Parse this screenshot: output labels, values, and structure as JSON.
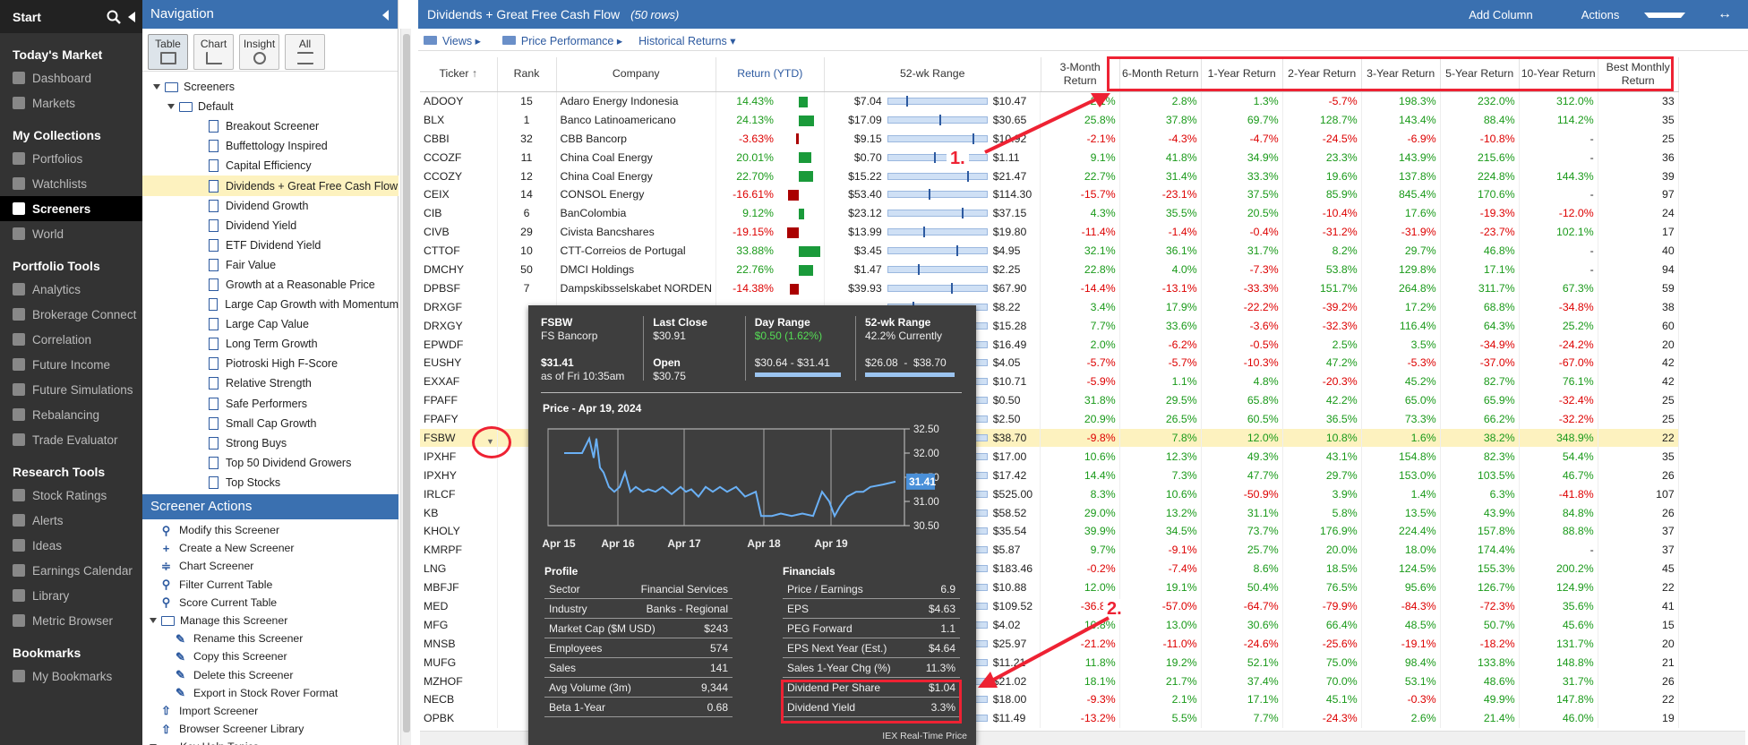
{
  "leftnav": {
    "start": "Start",
    "sections": [
      {
        "title": "Today's Market",
        "items": [
          "Dashboard",
          "Markets"
        ]
      },
      {
        "title": "My Collections",
        "items": [
          "Portfolios",
          "Watchlists",
          "Screeners",
          "World"
        ]
      },
      {
        "title": "Portfolio Tools",
        "items": [
          "Analytics",
          "Brokerage Connect",
          "Correlation",
          "Future Income",
          "Future Simulations",
          "Rebalancing",
          "Trade Evaluator"
        ]
      },
      {
        "title": "Research Tools",
        "items": [
          "Stock Ratings",
          "Alerts",
          "Ideas",
          "Earnings Calendar",
          "Library",
          "Metric Browser"
        ]
      },
      {
        "title": "Bookmarks",
        "items": [
          "My Bookmarks"
        ]
      }
    ],
    "active": "Screeners"
  },
  "nav": {
    "title": "Navigation",
    "views": [
      "Table",
      "Chart",
      "Insight",
      "All"
    ],
    "tree_root": "Screeners",
    "tree_default": "Default",
    "screeners": [
      "Breakout Screener",
      "Buffettology Inspired",
      "Capital Efficiency",
      "Dividends + Great Free Cash Flow",
      "Dividend Growth",
      "Dividend Yield",
      "ETF Dividend Yield",
      "Fair Value",
      "Growth at a Reasonable Price",
      "Large Cap Growth with Momentum",
      "Large Cap Value",
      "Long Term Growth",
      "Piotroski High F-Score",
      "Relative Strength",
      "Safe Performers",
      "Small Cap Growth",
      "Strong Buys",
      "Top 50 Dividend Growers",
      "Top Stocks"
    ],
    "selected": "Dividends + Great Free Cash Flow",
    "actions_title": "Screener Actions",
    "actions": [
      "Modify this Screener",
      "Create a New Screener",
      "Chart Screener",
      "Filter Current Table",
      "Score Current Table"
    ],
    "manage": "Manage this Screener",
    "manage_items": [
      "Rename this Screener",
      "Copy this Screener",
      "Delete this Screener",
      "Export in Stock Rover Format"
    ],
    "more": [
      "Import Screener",
      "Browser Screener Library",
      "Key Help Topics"
    ]
  },
  "main": {
    "title": "Dividends + Great Free Cash Flow",
    "rows": "(50 rows)",
    "add_column": "Add Column",
    "actions": "Actions",
    "toolbar": [
      "Views",
      "Price Performance",
      "Historical Returns"
    ],
    "headers": {
      "ticker": "Ticker",
      "rank": "Rank",
      "company": "Company",
      "ret": "Return (YTD)",
      "wk": "52-wk Range",
      "m3": "3-Month Return",
      "m6": "6-Month Return",
      "y1": "1-Year Return",
      "y2": "2-Year Return",
      "y3": "3-Year Return",
      "y5": "5-Year Return",
      "y10": "10-Year Return",
      "best": "Best Monthly Return"
    },
    "rows_data": [
      [
        "ADOOY",
        "15",
        "Adaro Energy Indonesia",
        "14.43%",
        "$7.04",
        "$10.47",
        "2.1%",
        "2.8%",
        "1.3%",
        "-5.7%",
        "198.3%",
        "232.0%",
        "312.0%",
        "33"
      ],
      [
        "BLX",
        "1",
        "Banco Latinoamericano",
        "24.13%",
        "$17.09",
        "$30.65",
        "25.8%",
        "37.8%",
        "69.7%",
        "128.7%",
        "143.4%",
        "88.4%",
        "114.2%",
        "35"
      ],
      [
        "CBBI",
        "32",
        "CBB Bancorp",
        "-3.63%",
        "$9.15",
        "$10.92",
        "-2.1%",
        "-4.3%",
        "-4.7%",
        "-24.5%",
        "-6.9%",
        "-10.8%",
        "-",
        "25"
      ],
      [
        "CCOZF",
        "11",
        "China Coal Energy",
        "20.01%",
        "$0.70",
        "$1.11",
        "9.1%",
        "41.8%",
        "34.9%",
        "23.3%",
        "143.9%",
        "215.6%",
        "-",
        "36"
      ],
      [
        "CCOZY",
        "12",
        "China Coal Energy",
        "22.70%",
        "$15.22",
        "$21.47",
        "22.7%",
        "31.4%",
        "33.3%",
        "19.6%",
        "137.8%",
        "224.8%",
        "144.3%",
        "39"
      ],
      [
        "CEIX",
        "14",
        "CONSOL Energy",
        "-16.61%",
        "$53.40",
        "$114.30",
        "-15.7%",
        "-23.1%",
        "37.5%",
        "85.9%",
        "845.4%",
        "170.6%",
        "-",
        "97"
      ],
      [
        "CIB",
        "6",
        "BanColombia",
        "9.12%",
        "$23.12",
        "$37.15",
        "4.3%",
        "35.5%",
        "20.5%",
        "-10.4%",
        "17.6%",
        "-19.3%",
        "-12.0%",
        "24"
      ],
      [
        "CIVB",
        "29",
        "Civista Bancshares",
        "-19.15%",
        "$13.99",
        "$19.80",
        "-11.4%",
        "-1.4%",
        "-0.4%",
        "-31.2%",
        "-31.9%",
        "-23.7%",
        "102.1%",
        "17"
      ],
      [
        "CTTOF",
        "10",
        "CTT-Correios de Portugal",
        "33.88%",
        "$3.45",
        "$4.95",
        "32.1%",
        "36.1%",
        "31.7%",
        "8.2%",
        "29.7%",
        "46.8%",
        "-",
        "40"
      ],
      [
        "DMCHY",
        "50",
        "DMCI Holdings",
        "22.76%",
        "$1.47",
        "$2.25",
        "22.8%",
        "4.0%",
        "-7.3%",
        "53.8%",
        "129.8%",
        "17.1%",
        "-",
        "94"
      ],
      [
        "DPBSF",
        "7",
        "Dampskibsselskabet NORDEN",
        "-14.38%",
        "$39.93",
        "$67.90",
        "-14.4%",
        "-13.1%",
        "-33.3%",
        "151.7%",
        "264.8%",
        "311.7%",
        "67.3%",
        "59"
      ],
      [
        "DRXGF",
        "",
        "",
        "",
        "",
        "$8.22",
        "3.4%",
        "17.9%",
        "-22.2%",
        "-39.2%",
        "17.2%",
        "68.8%",
        "-34.8%",
        "38"
      ],
      [
        "DRXGY",
        "",
        "",
        "",
        "",
        "$15.28",
        "7.7%",
        "33.6%",
        "-3.6%",
        "-32.3%",
        "116.4%",
        "64.3%",
        "25.2%",
        "60"
      ],
      [
        "EPWDF",
        "",
        "",
        "",
        "",
        "$16.49",
        "2.0%",
        "-6.2%",
        "-0.5%",
        "2.5%",
        "3.5%",
        "-34.9%",
        "-24.2%",
        "20"
      ],
      [
        "EUSHY",
        "",
        "",
        "",
        "",
        "$4.05",
        "-5.7%",
        "-5.7%",
        "-10.3%",
        "47.2%",
        "-5.3%",
        "-37.0%",
        "-67.0%",
        "42"
      ],
      [
        "EXXAF",
        "",
        "",
        "",
        "",
        "$10.71",
        "-5.9%",
        "1.1%",
        "4.8%",
        "-20.3%",
        "45.2%",
        "82.7%",
        "76.1%",
        "42"
      ],
      [
        "FPAFF",
        "",
        "",
        "",
        "",
        "$0.50",
        "31.8%",
        "29.5%",
        "65.8%",
        "42.2%",
        "65.0%",
        "65.9%",
        "-32.4%",
        "25"
      ],
      [
        "FPAFY",
        "",
        "",
        "",
        "",
        "$2.50",
        "20.9%",
        "26.5%",
        "60.5%",
        "36.5%",
        "73.3%",
        "66.2%",
        "-32.2%",
        "25"
      ],
      [
        "FSBW",
        "",
        "",
        "",
        "",
        "$38.70",
        "-9.8%",
        "7.8%",
        "12.0%",
        "10.8%",
        "1.6%",
        "38.2%",
        "348.9%",
        "22"
      ],
      [
        "IPXHF",
        "",
        "",
        "",
        "",
        "$17.00",
        "10.6%",
        "12.3%",
        "49.3%",
        "43.1%",
        "154.8%",
        "82.3%",
        "54.4%",
        "35"
      ],
      [
        "IPXHY",
        "",
        "",
        "",
        "",
        "$17.42",
        "14.4%",
        "7.3%",
        "47.7%",
        "29.7%",
        "153.0%",
        "103.5%",
        "46.7%",
        "26"
      ],
      [
        "IRLCF",
        "",
        "",
        "",
        "",
        "$525.00",
        "8.3%",
        "10.6%",
        "-50.9%",
        "3.9%",
        "1.4%",
        "6.3%",
        "-41.8%",
        "107"
      ],
      [
        "KB",
        "",
        "",
        "",
        "",
        "$58.52",
        "29.0%",
        "13.2%",
        "31.1%",
        "5.8%",
        "13.5%",
        "43.9%",
        "84.8%",
        "26"
      ],
      [
        "KHOLY",
        "",
        "",
        "",
        "",
        "$35.54",
        "39.9%",
        "34.5%",
        "73.7%",
        "176.9%",
        "224.4%",
        "157.8%",
        "88.8%",
        "37"
      ],
      [
        "KMRPF",
        "",
        "",
        "",
        "",
        "$5.87",
        "9.7%",
        "-9.1%",
        "25.7%",
        "20.0%",
        "18.0%",
        "174.4%",
        "-",
        "37"
      ],
      [
        "LNG",
        "",
        "",
        "",
        "",
        "$183.46",
        "-0.2%",
        "-7.4%",
        "8.6%",
        "18.5%",
        "124.5%",
        "155.3%",
        "200.2%",
        "45"
      ],
      [
        "MBFJF",
        "",
        "",
        "",
        "",
        "$10.88",
        "12.0%",
        "19.1%",
        "50.4%",
        "76.5%",
        "95.6%",
        "126.7%",
        "124.9%",
        "22"
      ],
      [
        "MED",
        "",
        "",
        "",
        "",
        "$109.52",
        "-36.8%",
        "-57.0%",
        "-64.7%",
        "-79.9%",
        "-84.3%",
        "-72.3%",
        "35.6%",
        "41"
      ],
      [
        "MFG",
        "",
        "",
        "",
        "",
        "$4.02",
        "10.8%",
        "13.0%",
        "30.6%",
        "66.4%",
        "48.5%",
        "50.7%",
        "45.6%",
        "15"
      ],
      [
        "MNSB",
        "",
        "",
        "",
        "",
        "$25.97",
        "-21.2%",
        "-11.0%",
        "-24.6%",
        "-25.6%",
        "-19.1%",
        "-18.2%",
        "131.7%",
        "20"
      ],
      [
        "MUFG",
        "",
        "",
        "",
        "",
        "$11.21",
        "11.8%",
        "19.2%",
        "52.1%",
        "75.0%",
        "98.4%",
        "133.8%",
        "148.8%",
        "21"
      ],
      [
        "MZHOF",
        "",
        "",
        "",
        "",
        "$21.02",
        "18.1%",
        "21.7%",
        "37.4%",
        "70.0%",
        "53.1%",
        "48.6%",
        "31.7%",
        "26"
      ],
      [
        "NECB",
        "",
        "",
        "",
        "",
        "$18.00",
        "-9.3%",
        "2.1%",
        "17.1%",
        "45.1%",
        "-0.3%",
        "49.9%",
        "147.8%",
        "22"
      ],
      [
        "OPBK",
        "",
        "",
        "",
        "",
        "$11.49",
        "-13.2%",
        "5.5%",
        "7.7%",
        "-24.3%",
        "2.6%",
        "21.4%",
        "46.0%",
        "19"
      ]
    ],
    "highlight_row": "FSBW"
  },
  "popup": {
    "ticker": "FSBW",
    "name": "FS Bancorp",
    "price": "$31.41",
    "asof": "as of Fri 10:35am",
    "last_close_label": "Last Close",
    "last_close": "$30.91",
    "open_label": "Open",
    "open": "$30.75",
    "day_range_label": "Day Range",
    "day_change": "$0.50 (1.62%)",
    "day_low": "$30.64",
    "day_high": "$31.41",
    "wk_label": "52-wk Range",
    "wk_current": "42.2% Currently",
    "wk_low": "$26.08",
    "wk_high": "$38.70",
    "dash": "-",
    "chart_title": "Price - Apr 19, 2024",
    "chart_last": "31.41",
    "y_ticks": [
      "32.50",
      "32.00",
      "31.50",
      "31.00",
      "30.50"
    ],
    "x_ticks": [
      "Apr 15",
      "Apr 16",
      "Apr 17",
      "Apr 18",
      "Apr 19"
    ],
    "profile_title": "Profile",
    "profile": [
      [
        "Sector",
        "Financial Services"
      ],
      [
        "Industry",
        "Banks - Regional"
      ],
      [
        "Market Cap ($M USD)",
        "$243"
      ],
      [
        "Employees",
        "574"
      ],
      [
        "Sales",
        "141"
      ],
      [
        "Avg Volume (3m)",
        "9,344"
      ],
      [
        "Beta 1-Year",
        "0.68"
      ]
    ],
    "fin_title": "Financials",
    "financials": [
      [
        "Price / Earnings",
        "6.9"
      ],
      [
        "EPS",
        "$4.63"
      ],
      [
        "PEG Forward",
        "1.1"
      ],
      [
        "EPS Next Year (Est.)",
        "$4.64"
      ],
      [
        "Sales 1-Year Chg (%)",
        "11.3%"
      ],
      [
        "Dividend Per Share",
        "$1.04"
      ],
      [
        "Dividend Yield",
        "3.3%"
      ]
    ],
    "footer": "IEX Real-Time Price"
  },
  "annotations": {
    "label1": "1.",
    "label2": "2."
  },
  "colors": {
    "accent": "#3a70b0",
    "positive": "#1a9a1a",
    "negative": "#d00",
    "annotation": "#e23"
  }
}
